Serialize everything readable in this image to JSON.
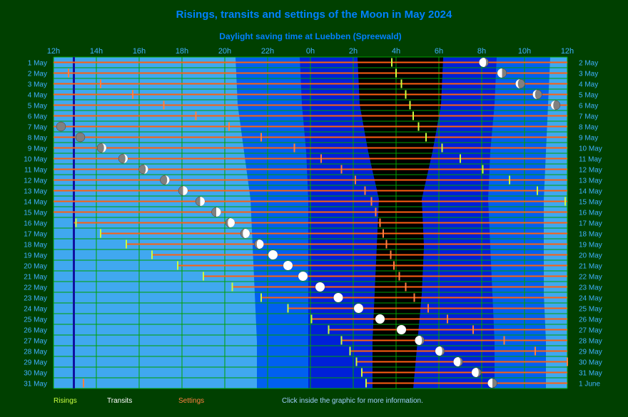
{
  "colors": {
    "background": "#004000",
    "day": "#40a8f0",
    "twilight_civil": "#0060f0",
    "twilight_nautical": "#0020d8",
    "twilight_astro": "#0000a0",
    "night": "#000000",
    "grid": "#00a000",
    "title": "#0080ff",
    "axis_text": "#40b0ff",
    "rising": "#c8ff40",
    "transit": "#ffffff",
    "setting": "#ff8040",
    "moon_line": "#ff6010",
    "moon_bright": "#ffffff",
    "moon_dark": "#808080",
    "noon_line": "#1010a0"
  },
  "footer": {
    "risings": "Risings",
    "transits": "Transits",
    "settings": "Settings",
    "hint": "Click inside the graphic for more information."
  },
  "chart_data": {
    "type": "timeline",
    "title": "Risings, transits and settings of the Moon in May 2024",
    "subtitle": "Daylight saving time at Luebben (Spreewald)",
    "x_unit": "hours from 12h noon",
    "xlim": [
      0,
      24
    ],
    "x_ticks": [
      "12h",
      "14h",
      "16h",
      "18h",
      "20h",
      "22h",
      "0h",
      "2h",
      "4h",
      "6h",
      "8h",
      "10h",
      "12h"
    ],
    "days_left": [
      "1 May",
      "2 May",
      "3 May",
      "4 May",
      "5 May",
      "6 May",
      "7 May",
      "8 May",
      "9 May",
      "10 May",
      "11 May",
      "12 May",
      "13 May",
      "14 May",
      "15 May",
      "16 May",
      "17 May",
      "18 May",
      "19 May",
      "20 May",
      "21 May",
      "22 May",
      "23 May",
      "24 May",
      "25 May",
      "26 May",
      "27 May",
      "28 May",
      "29 May",
      "30 May",
      "31 May"
    ],
    "days_right": [
      "2 May",
      "3 May",
      "4 May",
      "5 May",
      "6 May",
      "7 May",
      "8 May",
      "9 May",
      "10 May",
      "11 May",
      "12 May",
      "13 May",
      "14 May",
      "15 May",
      "16 May",
      "17 May",
      "18 May",
      "19 May",
      "20 May",
      "21 May",
      "22 May",
      "23 May",
      "24 May",
      "25 May",
      "26 May",
      "27 May",
      "28 May",
      "29 May",
      "30 May",
      "31 May",
      "1 June"
    ],
    "noon_marker": 0.95,
    "sky": [
      [
        8.5,
        11.5,
        14.2,
        16.2,
        18.2,
        20.7,
        23.2
      ],
      [
        8.6,
        11.6,
        14.3,
        16.2,
        18.1,
        20.6,
        23.1
      ],
      [
        8.9,
        11.8,
        14.7,
        16.2,
        17.7,
        20.4,
        23.0
      ],
      [
        9.2,
        11.9,
        15.2,
        16.2,
        17.2,
        20.3,
        22.9
      ],
      [
        9.3,
        11.9,
        15.1,
        16.2,
        17.3,
        20.4,
        22.9
      ],
      [
        9.4,
        11.9,
        15.0,
        16.2,
        17.2,
        20.5,
        22.9
      ],
      [
        9.5,
        11.9,
        14.9,
        16.2,
        17.0,
        20.6,
        23.0
      ],
      [
        9.5,
        11.9,
        14.9,
        16.2,
        16.8,
        20.6,
        23.0
      ]
    ],
    "moon_rows": [
      {
        "start": 0,
        "end": 24,
        "rise": 15.8,
        "transit": null,
        "set": null,
        "phase_x": 20.1
      },
      {
        "start": 0,
        "end": 24,
        "rise": 16.0,
        "transit": null,
        "set": 0.7,
        "phase_x": 20.95
      },
      {
        "start": 0,
        "end": 24,
        "rise": 16.25,
        "transit": null,
        "set": 2.2,
        "phase_x": 21.8
      },
      {
        "start": 0,
        "end": 24,
        "rise": 16.45,
        "transit": null,
        "set": 3.7,
        "phase_x": 22.6
      },
      {
        "start": 0,
        "end": 24,
        "rise": 16.65,
        "transit": null,
        "set": 5.15,
        "phase_x": 23.45
      },
      {
        "start": 0,
        "end": 24,
        "rise": 16.8,
        "transit": null,
        "set": 6.65,
        "phase_x": null
      },
      {
        "start": 0,
        "end": 24,
        "rise": 17.05,
        "transit": null,
        "set": 8.2,
        "phase_x": 0.35
      },
      {
        "start": 0,
        "end": 24,
        "rise": 17.4,
        "transit": null,
        "set": 9.7,
        "phase_x": 1.25
      },
      {
        "start": 0,
        "end": 24,
        "rise": 18.15,
        "transit": null,
        "set": 11.25,
        "phase_x": 2.25
      },
      {
        "start": 0,
        "end": 24,
        "rise": 19.0,
        "transit": null,
        "set": 12.5,
        "phase_x": 3.25
      },
      {
        "start": 0,
        "end": 24,
        "rise": 20.05,
        "transit": null,
        "set": 13.45,
        "phase_x": 4.2
      },
      {
        "start": 0,
        "end": 24,
        "rise": 21.3,
        "transit": null,
        "set": 14.1,
        "phase_x": 5.2
      },
      {
        "start": 0,
        "end": 24,
        "rise": 22.6,
        "transit": null,
        "set": 14.55,
        "phase_x": 6.05
      },
      {
        "start": 0,
        "end": 24,
        "rise": 23.9,
        "transit": null,
        "set": 14.85,
        "phase_x": 6.85
      },
      {
        "start": 0,
        "end": 24,
        "rise": null,
        "transit": null,
        "set": 15.05,
        "phase_x": 7.6
      },
      {
        "start": 0.95,
        "end": 24,
        "rise": 1.05,
        "transit": null,
        "set": 15.25,
        "phase_x": 8.25
      },
      {
        "start": 2.2,
        "end": 24,
        "rise": 2.2,
        "transit": null,
        "set": 15.4,
        "phase_x": 8.95
      },
      {
        "start": 3.4,
        "end": 24,
        "rise": 3.4,
        "transit": null,
        "set": 15.55,
        "phase_x": 9.6
      },
      {
        "start": 4.6,
        "end": 24,
        "rise": 4.6,
        "transit": null,
        "set": 15.75,
        "phase_x": 10.25
      },
      {
        "start": 5.8,
        "end": 24,
        "rise": 5.8,
        "transit": null,
        "set": 15.9,
        "phase_x": 10.95
      },
      {
        "start": 7.0,
        "end": 24,
        "rise": 7.0,
        "transit": null,
        "set": 16.15,
        "phase_x": 11.65
      },
      {
        "start": 8.35,
        "end": 24,
        "rise": 8.35,
        "transit": null,
        "set": 16.45,
        "phase_x": 12.45
      },
      {
        "start": 9.7,
        "end": 24,
        "rise": 9.7,
        "transit": null,
        "set": 16.85,
        "phase_x": 13.3
      },
      {
        "start": 10.95,
        "end": 24,
        "rise": 10.95,
        "transit": null,
        "set": 17.5,
        "phase_x": 14.25
      },
      {
        "start": 12.05,
        "end": 24,
        "rise": 12.05,
        "transit": null,
        "set": 18.4,
        "phase_x": 15.25
      },
      {
        "start": 12.85,
        "end": 24,
        "rise": 12.85,
        "transit": null,
        "set": 19.6,
        "phase_x": 16.25
      },
      {
        "start": 13.45,
        "end": 24,
        "rise": 13.45,
        "transit": null,
        "set": 21.05,
        "phase_x": 17.1
      },
      {
        "start": 13.85,
        "end": 24,
        "rise": 13.85,
        "transit": null,
        "set": 22.5,
        "phase_x": 18.05
      },
      {
        "start": 14.15,
        "end": 24,
        "rise": 14.15,
        "transit": null,
        "set": 24.0,
        "phase_x": 18.9
      },
      {
        "start": 14.4,
        "end": 24,
        "rise": 14.4,
        "transit": null,
        "set": null,
        "phase_x": 19.75
      },
      {
        "start": 14.6,
        "end": 24,
        "rise": 14.6,
        "transit": null,
        "set": 1.4,
        "phase_x": 20.5
      }
    ],
    "phases": [
      "waning-gibbous",
      "last-quarter",
      "waning-crescent",
      "waning-crescent",
      "waning-crescent",
      "new",
      "new",
      "new",
      "waxing-crescent",
      "waxing-crescent",
      "waxing-crescent",
      "waxing-crescent",
      "first-quarter",
      "first-quarter",
      "first-quarter",
      "waxing-gibbous",
      "waxing-gibbous",
      "waxing-gibbous",
      "full",
      "full",
      "full",
      "full",
      "full",
      "full",
      "full",
      "full",
      "waning-gibbous",
      "waning-gibbous",
      "waning-gibbous",
      "waning-gibbous",
      "last-quarter"
    ]
  }
}
